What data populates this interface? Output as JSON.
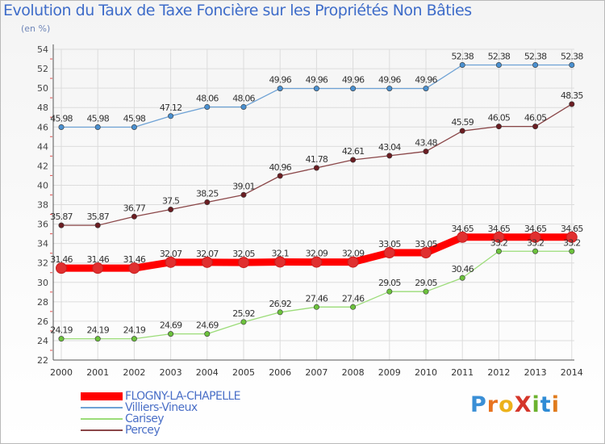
{
  "header": {
    "title": "Evolution du Taux de Taxe Foncière sur les Propriétés Non Bâties",
    "unit": "(en %)"
  },
  "logo": {
    "text": "ProXiti",
    "letters": [
      "P",
      "r",
      "o",
      "X",
      "i",
      "t",
      "i"
    ],
    "colors": [
      "#3a8fd6",
      "#e8731f",
      "#ecb21b",
      "#d5362a",
      "#6cb22f",
      "#2e8bd5",
      "#e07b1d"
    ]
  },
  "chart_data": {
    "type": "line",
    "title": "Evolution du Taux de Taxe Foncière sur les Propriétés Non Bâties",
    "ylabel": "(en %)",
    "xlabel": "",
    "x": [
      "2000",
      "2001",
      "2002",
      "2003",
      "2004",
      "2005",
      "2006",
      "2007",
      "2008",
      "2009",
      "2010",
      "2011",
      "2012",
      "2013",
      "2014"
    ],
    "ylim": [
      22,
      54
    ],
    "yticks": [
      "22",
      "24",
      "26",
      "28",
      "30",
      "32",
      "34",
      "36",
      "38",
      "40",
      "42",
      "44",
      "46",
      "48",
      "50",
      "52",
      "54"
    ],
    "grid": true,
    "legend_position": "bottom-left",
    "series": [
      {
        "name": "FLOGNY-LA-CHAPELLE",
        "color": "#ff0000",
        "marker": "#e03030",
        "emphasis": true,
        "values": [
          31.46,
          31.46,
          31.46,
          32.07,
          32.07,
          32.05,
          32.1,
          32.09,
          32.09,
          33.05,
          33.05,
          34.65,
          34.65,
          34.65,
          34.65
        ],
        "labels": [
          "31.46",
          "31.46",
          "31.46",
          "32.07",
          "32.07",
          "32.05",
          "32.1",
          "32.09",
          "32.09",
          "33.05",
          "33.05",
          "34.65",
          "34.65",
          "34.65",
          "34.65"
        ]
      },
      {
        "name": "Villiers-Vineux",
        "color": "#6ea2d5",
        "marker": "#4a90d0",
        "emphasis": false,
        "values": [
          45.98,
          45.98,
          45.98,
          47.12,
          48.06,
          48.06,
          49.96,
          49.96,
          49.96,
          49.96,
          49.96,
          52.38,
          52.38,
          52.38,
          52.38
        ],
        "labels": [
          "45.98",
          "45.98",
          "45.98",
          "47.12",
          "48.06",
          "48.06",
          "49.96",
          "49.96",
          "49.96",
          "49.96",
          "49.96",
          "52.38",
          "52.38",
          "52.38",
          "52.38"
        ]
      },
      {
        "name": "Carisey",
        "color": "#9bdc78",
        "marker": "#6cc23c",
        "emphasis": false,
        "values": [
          24.19,
          24.19,
          24.19,
          24.69,
          24.69,
          25.92,
          26.92,
          27.46,
          27.46,
          29.05,
          29.05,
          30.46,
          33.2,
          33.2,
          33.2
        ],
        "labels": [
          "24.19",
          "24.19",
          "24.19",
          "24.69",
          "24.69",
          "25.92",
          "26.92",
          "27.46",
          "27.46",
          "29.05",
          "29.05",
          "30.46",
          "33.2",
          "33.2",
          "33.2"
        ]
      },
      {
        "name": "Percey",
        "color": "#8a4648",
        "marker": "#6b1d22",
        "emphasis": false,
        "values": [
          35.87,
          35.87,
          36.77,
          37.5,
          38.25,
          39.01,
          40.96,
          41.78,
          42.61,
          43.04,
          43.48,
          45.59,
          46.05,
          46.05,
          48.35
        ],
        "labels": [
          "35.87",
          "35.87",
          "36.77",
          "37.5",
          "38.25",
          "39.01",
          "40.96",
          "41.78",
          "42.61",
          "43.04",
          "43.48",
          "45.59",
          "46.05",
          "46.05",
          "48.35"
        ]
      }
    ]
  }
}
